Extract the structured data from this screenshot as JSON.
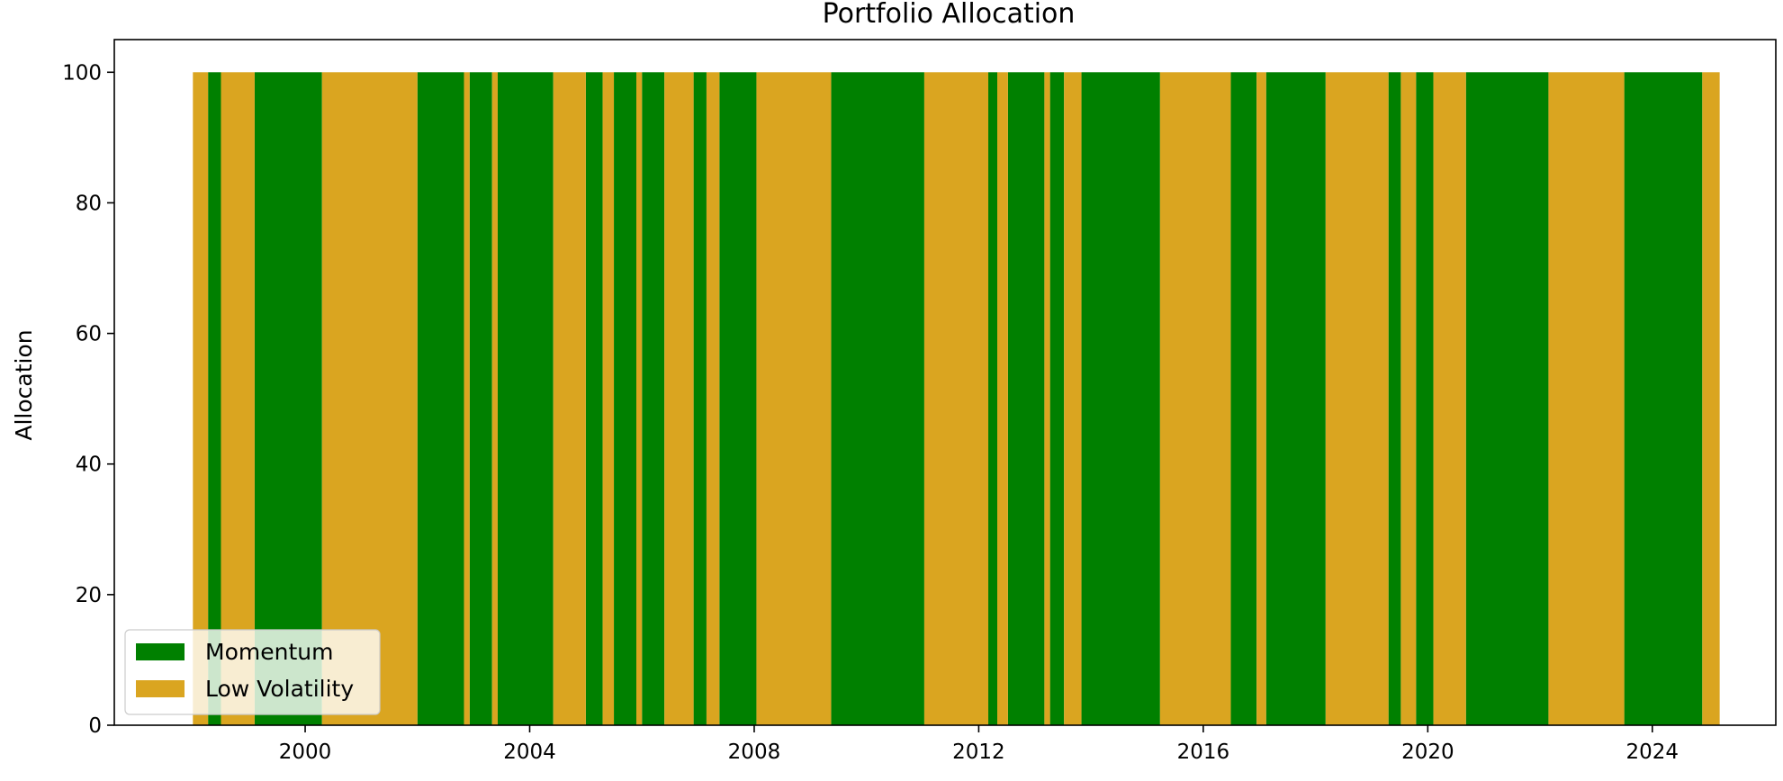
{
  "chart_data": {
    "type": "area",
    "title": "Portfolio Allocation",
    "xlabel": "",
    "ylabel": "Allocation",
    "xlim": [
      1996.6,
      2026.2
    ],
    "ylim": [
      0,
      105
    ],
    "x_ticks": [
      2000,
      2004,
      2008,
      2012,
      2016,
      2020,
      2024
    ],
    "x_tick_labels": [
      "2000",
      "2004",
      "2008",
      "2012",
      "2016",
      "2020",
      "2024"
    ],
    "y_ticks": [
      0,
      20,
      40,
      60,
      80,
      100
    ],
    "y_tick_labels": [
      "0",
      "20",
      "40",
      "60",
      "80",
      "100"
    ],
    "grid": false,
    "legend_position": "lower-left",
    "series": [
      {
        "name": "Momentum",
        "color": "#008000",
        "periods": [
          [
            1998.27,
            1998.5
          ],
          [
            1999.1,
            2000.3
          ],
          [
            2002.0,
            2002.83
          ],
          [
            2002.93,
            2003.33
          ],
          [
            2003.43,
            2004.42
          ],
          [
            2005.0,
            2005.3
          ],
          [
            2005.5,
            2005.9
          ],
          [
            2006.0,
            2006.4
          ],
          [
            2006.92,
            2007.15
          ],
          [
            2007.38,
            2008.04
          ],
          [
            2009.37,
            2011.03
          ],
          [
            2012.17,
            2012.33
          ],
          [
            2012.52,
            2013.17
          ],
          [
            2013.27,
            2013.52
          ],
          [
            2013.83,
            2015.23
          ],
          [
            2016.49,
            2016.95
          ],
          [
            2017.12,
            2018.18
          ],
          [
            2019.3,
            2019.52
          ],
          [
            2019.79,
            2020.1
          ],
          [
            2020.68,
            2022.15
          ],
          [
            2023.5,
            2024.89
          ]
        ]
      },
      {
        "name": "Low Volatility",
        "color": "#daa520",
        "periods": [
          [
            1998.0,
            1998.27
          ],
          [
            1998.5,
            1999.1
          ],
          [
            2000.3,
            2002.0
          ],
          [
            2002.83,
            2002.93
          ],
          [
            2003.33,
            2003.43
          ],
          [
            2004.42,
            2005.0
          ],
          [
            2005.3,
            2005.5
          ],
          [
            2005.9,
            2006.0
          ],
          [
            2006.4,
            2006.92
          ],
          [
            2007.15,
            2007.38
          ],
          [
            2008.04,
            2009.37
          ],
          [
            2011.03,
            2012.17
          ],
          [
            2012.33,
            2012.52
          ],
          [
            2013.17,
            2013.27
          ],
          [
            2013.52,
            2013.83
          ],
          [
            2015.23,
            2016.49
          ],
          [
            2016.95,
            2017.12
          ],
          [
            2018.18,
            2019.3
          ],
          [
            2019.52,
            2019.79
          ],
          [
            2020.1,
            2020.68
          ],
          [
            2022.15,
            2023.5
          ],
          [
            2024.89,
            2025.2
          ]
        ]
      }
    ]
  }
}
